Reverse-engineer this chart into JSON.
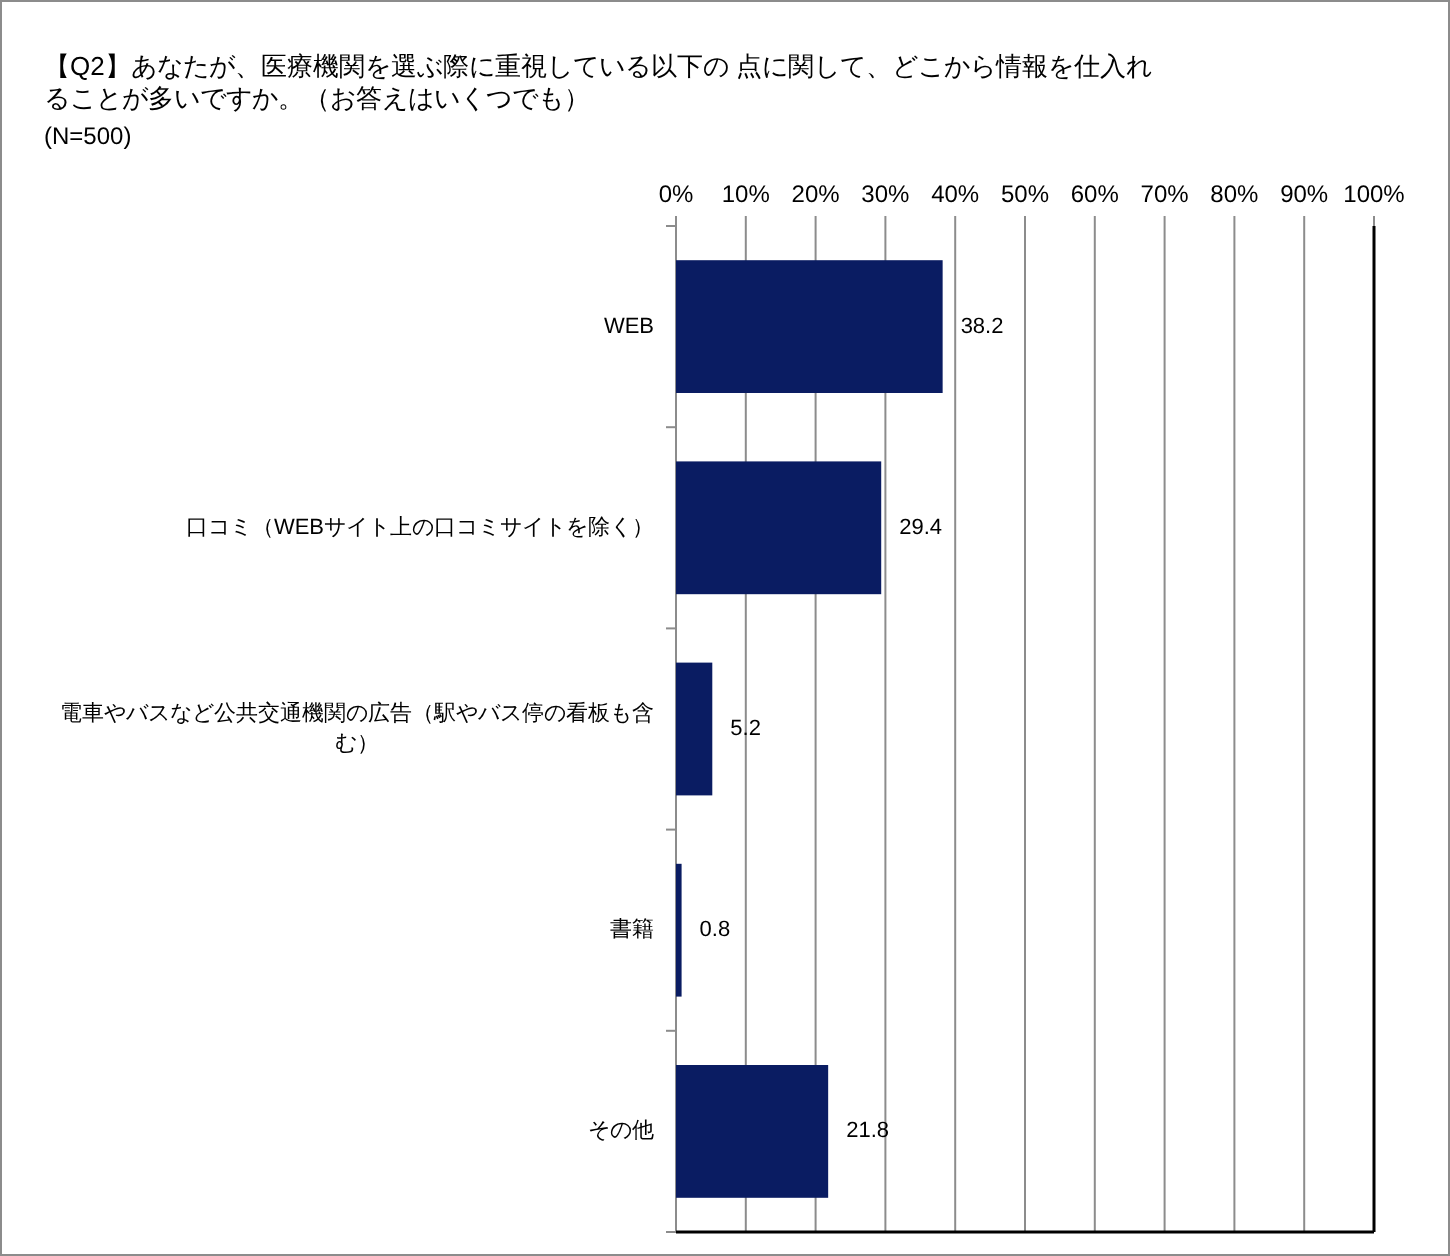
{
  "chart_data": {
    "type": "bar",
    "orientation": "horizontal",
    "title": "【Q2】あなたが、医療機関を選ぶ際に重視している以下の 点に関して、どこから情報を仕入れることが多いですか。（お答えはいくつでも）",
    "subtitle": "(N=500)",
    "categories": [
      "WEB",
      "口コミ（WEBサイト上の口コミサイトを除く）",
      "電車やバスなど公共交通機関の広告（駅やバス停の看板も含む）",
      "書籍",
      "その他"
    ],
    "values": [
      38.2,
      29.4,
      5.2,
      0.8,
      21.8
    ],
    "color": "#0a1c62",
    "xlim": [
      0,
      100
    ],
    "xticks": [
      {
        "value": 0,
        "label": "0%"
      },
      {
        "value": 10,
        "label": "10%"
      },
      {
        "value": 20,
        "label": "20%"
      },
      {
        "value": 30,
        "label": "30%"
      },
      {
        "value": 40,
        "label": "40%"
      },
      {
        "value": 50,
        "label": "50%"
      },
      {
        "value": 60,
        "label": "60%"
      },
      {
        "value": 70,
        "label": "70%"
      },
      {
        "value": 80,
        "label": "80%"
      },
      {
        "value": 90,
        "label": "90%"
      },
      {
        "value": 100,
        "label": "100%"
      }
    ],
    "grid": "x",
    "data_labels": true
  }
}
